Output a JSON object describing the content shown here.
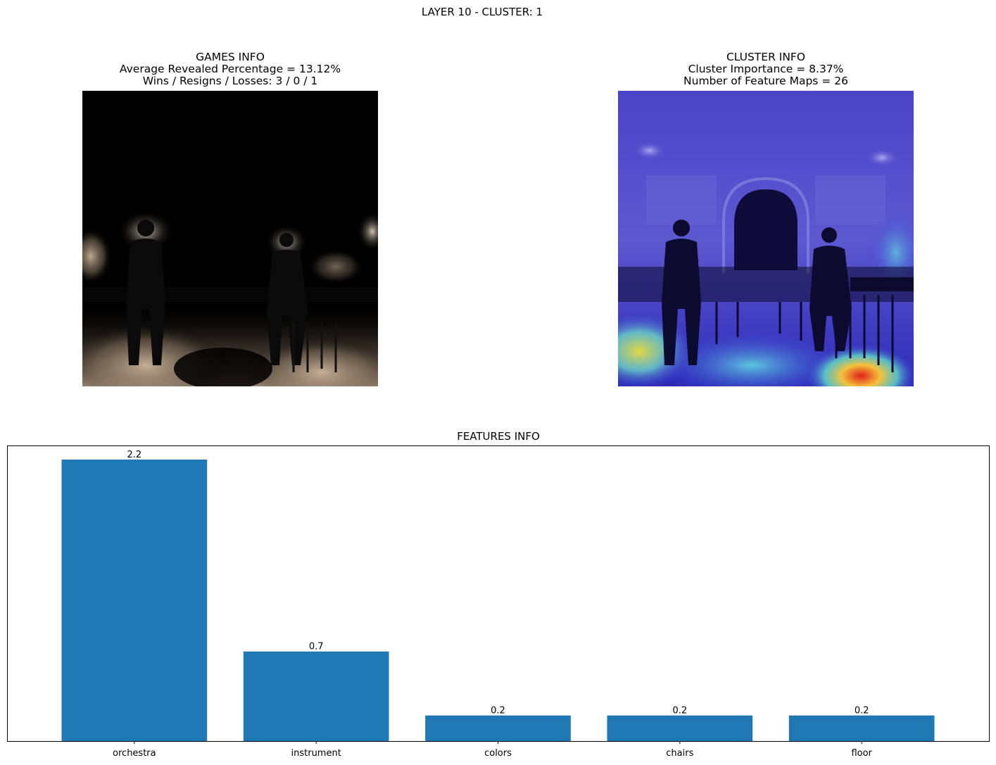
{
  "figure": {
    "suptitle": "LAYER 10 - CLUSTER: 1"
  },
  "games_info": {
    "title": "GAMES INFO",
    "line1": "Average Revealed Percentage = 13.12%",
    "line2": "Wins / Resigns / Losses: 3 / 0 / 1"
  },
  "cluster_info": {
    "title": "CLUSTER INFO",
    "line1": "Cluster Importance = 8.37%",
    "line2": "Number of Feature Maps = 26"
  },
  "features_info": {
    "title": "FEATURES INFO"
  },
  "chart_data": {
    "type": "bar",
    "title": "FEATURES INFO",
    "categories": [
      "orchestra",
      "instrument",
      "colors",
      "chairs",
      "floor"
    ],
    "values": [
      2.2,
      0.7,
      0.2,
      0.2,
      0.2
    ],
    "value_labels": [
      "2.2",
      "0.7",
      "0.2",
      "0.2",
      "0.2"
    ],
    "xlabel": "",
    "ylabel": "",
    "ylim": [
      0,
      2.31
    ],
    "y_ticks_visible": false,
    "grid": false,
    "bar_color": "#1f77b4"
  },
  "colors": {
    "bar": "#1f77b4",
    "heatmap_overlay": "#3a35d6"
  }
}
